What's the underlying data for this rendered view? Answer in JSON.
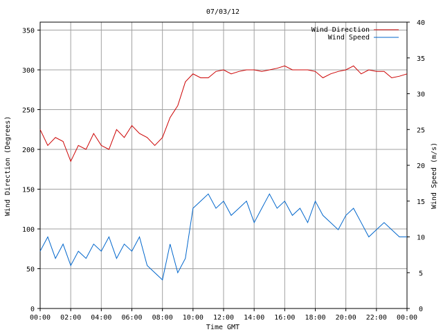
{
  "chart_data": {
    "type": "line",
    "title": "07/03/12",
    "xlabel": "Time GMT",
    "ylabel_left": "Wind Direction (Degrees)",
    "ylabel_right": "Wind Speed (m/s)",
    "x_ticks": [
      "00:00",
      "02:00",
      "04:00",
      "06:00",
      "08:00",
      "10:00",
      "12:00",
      "14:00",
      "16:00",
      "18:00",
      "20:00",
      "22:00",
      "00:00"
    ],
    "y_left_ticks": [
      0,
      50,
      100,
      150,
      200,
      250,
      300,
      350
    ],
    "y_right_ticks": [
      0,
      5,
      10,
      15,
      20,
      25,
      30,
      35,
      40
    ],
    "x_range_hours": [
      0,
      24
    ],
    "y_left_range": [
      0,
      360
    ],
    "y_right_range": [
      0,
      40
    ],
    "grid": true,
    "legend_position": "top-right",
    "series": [
      {
        "name": "Wind Direction",
        "axis": "left",
        "color": "#cc0000",
        "x_hours": [
          0,
          0.5,
          1,
          1.5,
          2,
          2.5,
          3,
          3.5,
          4,
          4.5,
          5,
          5.5,
          6,
          6.5,
          7,
          7.5,
          8,
          8.5,
          9,
          9.5,
          10,
          10.5,
          11,
          11.5,
          12,
          12.5,
          13,
          13.5,
          14,
          14.5,
          15,
          15.5,
          16,
          16.5,
          17,
          17.5,
          18,
          18.5,
          19,
          19.5,
          20,
          20.5,
          21,
          21.5,
          22,
          22.5,
          23,
          23.5,
          24
        ],
        "values": [
          225,
          205,
          215,
          210,
          185,
          205,
          200,
          220,
          205,
          200,
          225,
          215,
          230,
          220,
          215,
          205,
          215,
          240,
          255,
          285,
          295,
          290,
          290,
          298,
          300,
          295,
          298,
          300,
          300,
          298,
          300,
          302,
          305,
          300,
          300,
          300,
          298,
          290,
          295,
          298,
          300,
          305,
          295,
          300,
          298,
          298,
          290,
          292,
          295
        ]
      },
      {
        "name": "Wind Speed",
        "axis": "right",
        "color": "#0066cc",
        "x_hours": [
          0,
          0.5,
          1,
          1.5,
          2,
          2.5,
          3,
          3.5,
          4,
          4.5,
          5,
          5.5,
          6,
          6.5,
          7,
          7.5,
          8,
          8.5,
          9,
          9.5,
          10,
          10.5,
          11,
          11.5,
          12,
          12.5,
          13,
          13.5,
          14,
          14.5,
          15,
          15.5,
          16,
          16.5,
          17,
          17.5,
          18,
          18.5,
          19,
          19.5,
          20,
          20.5,
          21,
          21.5,
          22,
          22.5,
          23,
          23.5,
          24
        ],
        "values": [
          8,
          10,
          7,
          9,
          6,
          8,
          7,
          9,
          8,
          10,
          7,
          9,
          8,
          10,
          6,
          5,
          4,
          9,
          5,
          7,
          14,
          15,
          16,
          14,
          15,
          13,
          14,
          15,
          12,
          14,
          16,
          14,
          15,
          13,
          14,
          12,
          15,
          13,
          12,
          11,
          13,
          14,
          12,
          10,
          11,
          12,
          11,
          10,
          10
        ]
      }
    ]
  }
}
